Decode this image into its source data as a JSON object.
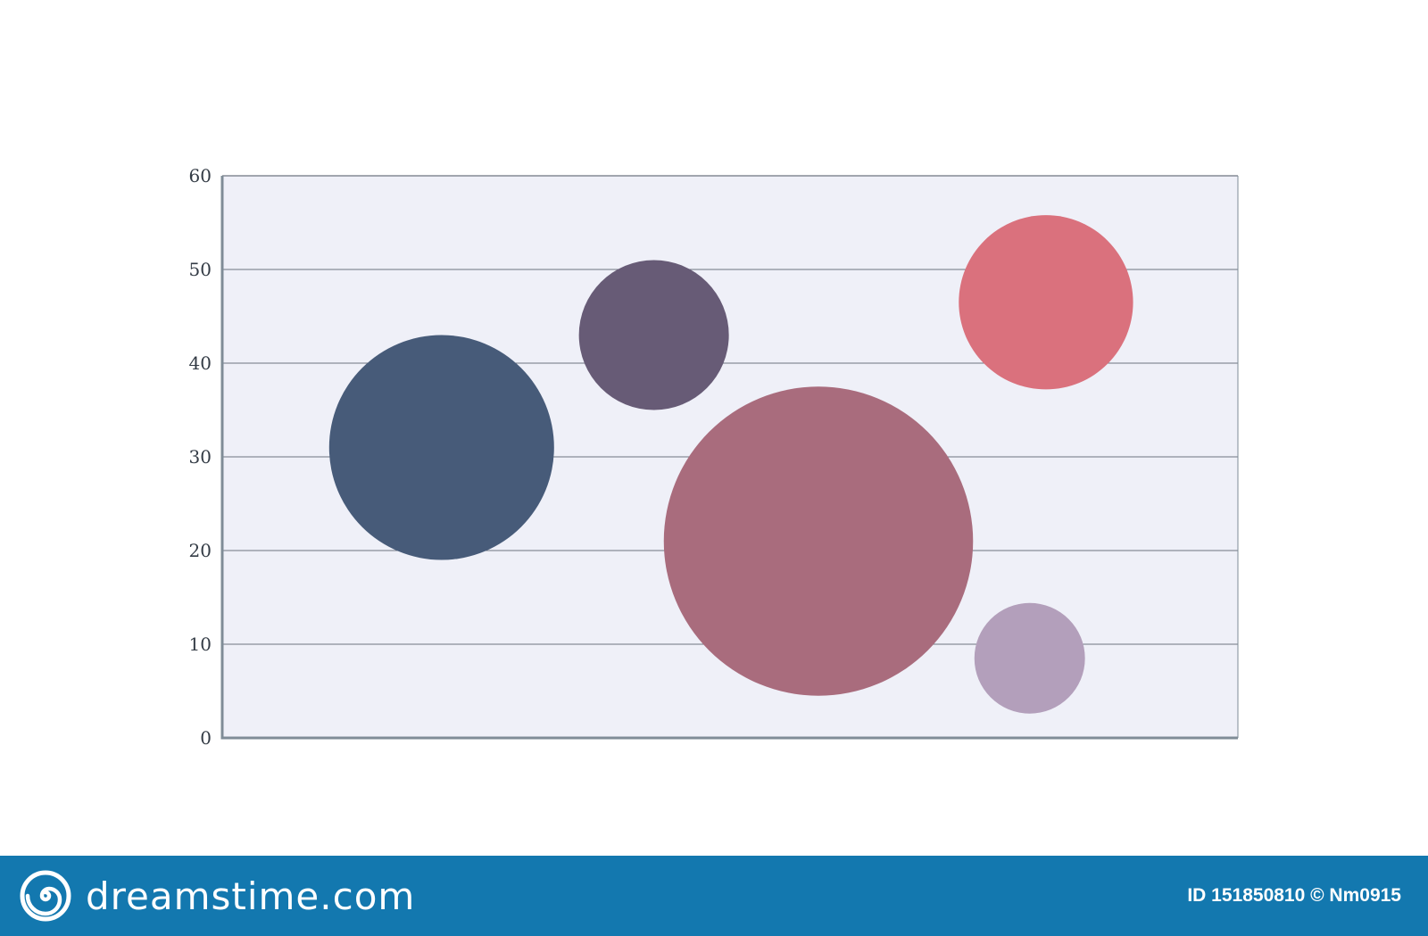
{
  "colors": {
    "plot_bg": "#eff0f8",
    "grid": "#6d7480",
    "axis": "#7f8c97",
    "footer_bg": "#1378af"
  },
  "chart_data": {
    "type": "bubble",
    "title": "",
    "xlabel": "",
    "ylabel": "",
    "ylim": [
      0,
      60
    ],
    "yticks": [
      0,
      10,
      20,
      30,
      40,
      50,
      60
    ],
    "xlim": [
      0,
      100
    ],
    "grid": true,
    "legend": "none",
    "points": [
      {
        "x": 21.6,
        "y": 31,
        "size": 12,
        "color": "#475b79"
      },
      {
        "x": 42.5,
        "y": 43,
        "size": 8,
        "color": "#675b76"
      },
      {
        "x": 58.7,
        "y": 21,
        "size": 16.5,
        "color": "#a96c7d"
      },
      {
        "x": 81.1,
        "y": 46.5,
        "size": 9.3,
        "color": "#da717d"
      },
      {
        "x": 79.5,
        "y": 8.5,
        "size": 5.9,
        "color": "#b39fbb"
      }
    ]
  },
  "footer": {
    "brand": "dreamstime.com",
    "brand_icon": "spiral-icon",
    "credit": "ID 151850810 © Nm0915"
  }
}
